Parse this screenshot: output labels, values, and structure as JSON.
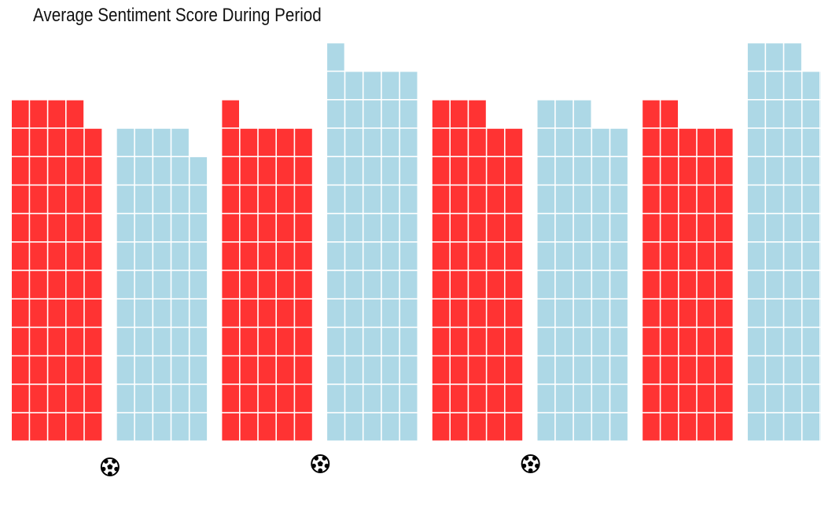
{
  "chart_data": {
    "type": "waffle",
    "title": "Average Sentiment Score During Period",
    "xlabel": "",
    "ylabel": "",
    "grid": false,
    "legend": "none",
    "cells_per_row": 5,
    "periods": [
      {
        "color": "#ff3333",
        "value": 59
      },
      {
        "color": "#add8e6",
        "value": 54
      },
      {
        "color": "#ff3333",
        "value": 56
      },
      {
        "color": "#add8e6",
        "value": 66
      },
      {
        "color": "#ff3333",
        "value": 58
      },
      {
        "color": "#add8e6",
        "value": 58
      },
      {
        "color": "#ff3333",
        "value": 57
      },
      {
        "color": "#add8e6",
        "value": 68
      }
    ],
    "markers": [
      {
        "icon": "soccer-ball-icon",
        "between_periods": [
          1,
          2
        ]
      },
      {
        "icon": "soccer-ball-icon",
        "between_periods": [
          3,
          4
        ]
      },
      {
        "icon": "soccer-ball-icon",
        "between_periods": [
          5,
          6
        ]
      }
    ]
  }
}
